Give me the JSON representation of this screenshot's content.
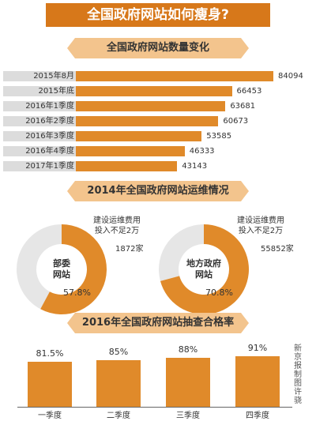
{
  "title": "全国政府网站如何瘦身?",
  "colors": {
    "accent": "#e08a2a",
    "banner": "#d7781a",
    "ribbon": "#f3c48d",
    "track": "#dcdcdc",
    "donut_rest": "#e6e6e6"
  },
  "sections": {
    "count": "全国政府网站数量变化",
    "ops": "2014年全国政府网站运维情况",
    "pass": "2016年全国政府网站抽查合格率"
  },
  "credit": "新京报制图 许骁",
  "donuts": [
    {
      "center": "部委\n网站",
      "percent": "57.8%",
      "fraction": 0.578,
      "top_label": "建设运维费用\n投入不足2万",
      "count": "1872家"
    },
    {
      "center": "地方政府\n网站",
      "percent": "70.8%",
      "fraction": 0.708,
      "top_label": "建设运维费用\n投入不足2万",
      "count": "55852家"
    }
  ],
  "chart_data": [
    {
      "type": "bar",
      "orientation": "horizontal",
      "title": "全国政府网站数量变化",
      "categories": [
        "2015年8月",
        "2015年底",
        "2016年1季度",
        "2016年2季度",
        "2016年3季度",
        "2016年4季度",
        "2017年1季度"
      ],
      "values": [
        84094,
        66453,
        63681,
        60673,
        53585,
        46333,
        43143
      ],
      "xlim": [
        0,
        84094
      ]
    },
    {
      "type": "pie",
      "title": "2014年全国政府网站运维情况",
      "slices": [
        {
          "label": "部委网站",
          "value": 57.8
        },
        {
          "label": "地方政府网站",
          "value": 70.8
        }
      ]
    },
    {
      "type": "bar",
      "title": "2016年全国政府网站抽查合格率",
      "categories": [
        "一季度",
        "二季度",
        "三季度",
        "四季度"
      ],
      "values": [
        81.5,
        85,
        88,
        91
      ],
      "value_labels": [
        "81.5%",
        "85%",
        "88%",
        "91%"
      ],
      "ylim": [
        0,
        100
      ]
    }
  ]
}
